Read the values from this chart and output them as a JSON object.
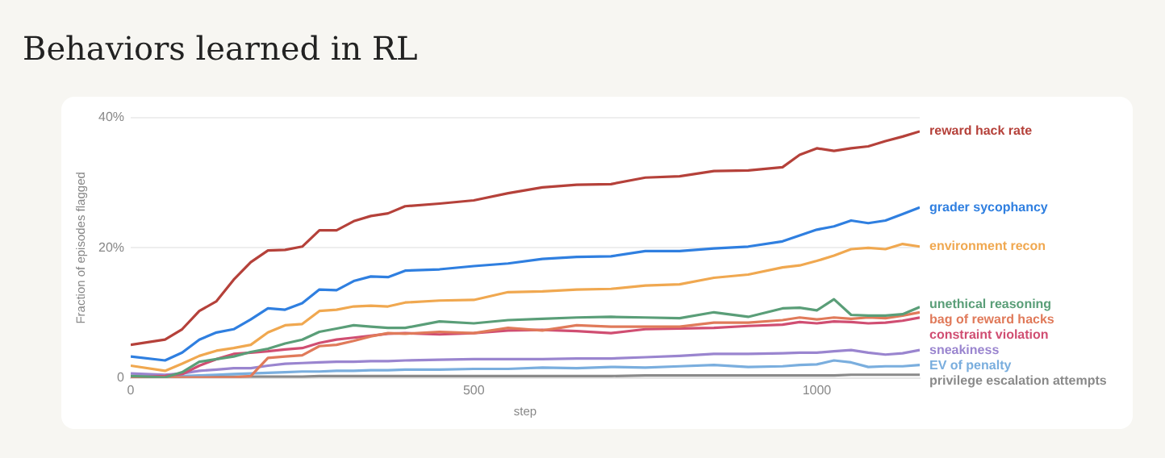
{
  "chart_data": {
    "type": "line",
    "title": "Behaviors learned in RL",
    "xlabel": "step",
    "ylabel": "Fraction of episodes flagged",
    "x": [
      0,
      50,
      75,
      100,
      125,
      150,
      175,
      200,
      225,
      250,
      275,
      300,
      325,
      350,
      375,
      400,
      450,
      500,
      550,
      600,
      650,
      700,
      750,
      800,
      850,
      900,
      950,
      975,
      1000,
      1025,
      1050,
      1075,
      1100,
      1125,
      1150
    ],
    "xlim": [
      0,
      1150
    ],
    "xticks": [
      0,
      500,
      1000
    ],
    "ylim": [
      0,
      40
    ],
    "yticks": [
      0,
      {
        "value": 20,
        "label": "20%"
      },
      {
        "value": 40,
        "label": "40%"
      }
    ],
    "grid": "y",
    "marker": "none",
    "line_style": "solid",
    "series": [
      {
        "name": "reward hack rate",
        "color": "#b5413a",
        "values": [
          5.1,
          5.9,
          7.5,
          10.3,
          11.8,
          15.1,
          17.8,
          19.6,
          19.7,
          20.2,
          22.7,
          22.7,
          24.1,
          24.9,
          25.3,
          26.4,
          26.8,
          27.3,
          28.4,
          29.3,
          29.7,
          29.8,
          30.8,
          31.0,
          31.8,
          31.9,
          32.4,
          34.3,
          35.3,
          34.9,
          35.3,
          35.6,
          36.4,
          37.1,
          37.9
        ]
      },
      {
        "name": "grader sycophancy",
        "color": "#2f7fe0",
        "values": [
          3.3,
          2.7,
          3.9,
          5.9,
          7.0,
          7.5,
          9.0,
          10.7,
          10.5,
          11.5,
          13.6,
          13.5,
          14.9,
          15.6,
          15.5,
          16.5,
          16.7,
          17.2,
          17.6,
          18.3,
          18.6,
          18.7,
          19.5,
          19.5,
          19.9,
          20.2,
          21.0,
          21.9,
          22.8,
          23.3,
          24.2,
          23.8,
          24.2,
          25.2,
          26.2
        ]
      },
      {
        "name": "environment recon",
        "color": "#f0a850",
        "values": [
          1.9,
          1.1,
          2.2,
          3.4,
          4.2,
          4.6,
          5.1,
          7.0,
          8.1,
          8.3,
          10.3,
          10.5,
          11.0,
          11.1,
          11.0,
          11.6,
          11.9,
          12.0,
          13.2,
          13.3,
          13.6,
          13.7,
          14.2,
          14.4,
          15.4,
          15.9,
          17.0,
          17.3,
          18.0,
          18.8,
          19.8,
          20.0,
          19.8,
          20.6,
          20.2
        ]
      },
      {
        "name": "unethical reasoning",
        "color": "#5a9e78",
        "values": [
          0.3,
          0.1,
          0.9,
          2.5,
          2.9,
          3.3,
          4.0,
          4.5,
          5.3,
          5.9,
          7.1,
          7.6,
          8.1,
          7.9,
          7.7,
          7.7,
          8.7,
          8.4,
          8.9,
          9.1,
          9.3,
          9.4,
          9.3,
          9.2,
          10.1,
          9.4,
          10.7,
          10.8,
          10.4,
          12.1,
          9.7,
          9.6,
          9.6,
          9.8,
          10.9
        ]
      },
      {
        "name": "bag of reward hacks",
        "color": "#e07a5a",
        "values": [
          0.2,
          0.1,
          0.1,
          0.1,
          0.1,
          0.1,
          0.3,
          3.1,
          3.3,
          3.5,
          4.9,
          5.1,
          5.7,
          6.4,
          6.9,
          6.8,
          7.1,
          6.9,
          7.7,
          7.3,
          8.1,
          7.9,
          7.9,
          7.9,
          8.5,
          8.5,
          8.9,
          9.3,
          9.0,
          9.3,
          9.1,
          9.3,
          9.2,
          9.6,
          10.1
        ]
      },
      {
        "name": "constraint violation",
        "color": "#d04e72",
        "values": [
          0.1,
          0.3,
          0.6,
          1.9,
          2.9,
          3.7,
          3.9,
          4.1,
          4.4,
          4.6,
          5.4,
          5.9,
          6.2,
          6.5,
          6.8,
          6.9,
          6.7,
          6.9,
          7.3,
          7.4,
          7.2,
          6.9,
          7.5,
          7.6,
          7.7,
          8.0,
          8.2,
          8.6,
          8.4,
          8.7,
          8.6,
          8.4,
          8.5,
          8.8,
          9.3
        ]
      },
      {
        "name": "sneakiness",
        "color": "#9a85cf",
        "values": [
          0.7,
          0.5,
          0.7,
          1.1,
          1.3,
          1.5,
          1.5,
          1.9,
          2.2,
          2.3,
          2.4,
          2.5,
          2.5,
          2.6,
          2.6,
          2.7,
          2.8,
          2.9,
          2.9,
          2.9,
          3.0,
          3.0,
          3.2,
          3.4,
          3.7,
          3.7,
          3.8,
          3.9,
          3.9,
          4.1,
          4.3,
          3.9,
          3.6,
          3.8,
          4.3
        ]
      },
      {
        "name": "EV of penalty",
        "color": "#7aaede",
        "values": [
          0.3,
          0.2,
          0.3,
          0.4,
          0.5,
          0.6,
          0.7,
          0.8,
          0.9,
          1.0,
          1.0,
          1.1,
          1.1,
          1.2,
          1.2,
          1.3,
          1.3,
          1.4,
          1.4,
          1.6,
          1.5,
          1.7,
          1.6,
          1.8,
          2.0,
          1.7,
          1.8,
          2.0,
          2.1,
          2.7,
          2.4,
          1.7,
          1.8,
          1.8,
          2.0
        ]
      },
      {
        "name": "privilege escalation attempts",
        "color": "#8a8a8a",
        "values": [
          0.2,
          0.2,
          0.2,
          0.2,
          0.2,
          0.2,
          0.2,
          0.2,
          0.2,
          0.2,
          0.3,
          0.3,
          0.3,
          0.3,
          0.3,
          0.3,
          0.3,
          0.3,
          0.3,
          0.3,
          0.3,
          0.3,
          0.4,
          0.4,
          0.4,
          0.4,
          0.4,
          0.4,
          0.4,
          0.4,
          0.5,
          0.5,
          0.5,
          0.5,
          0.5
        ]
      }
    ]
  }
}
